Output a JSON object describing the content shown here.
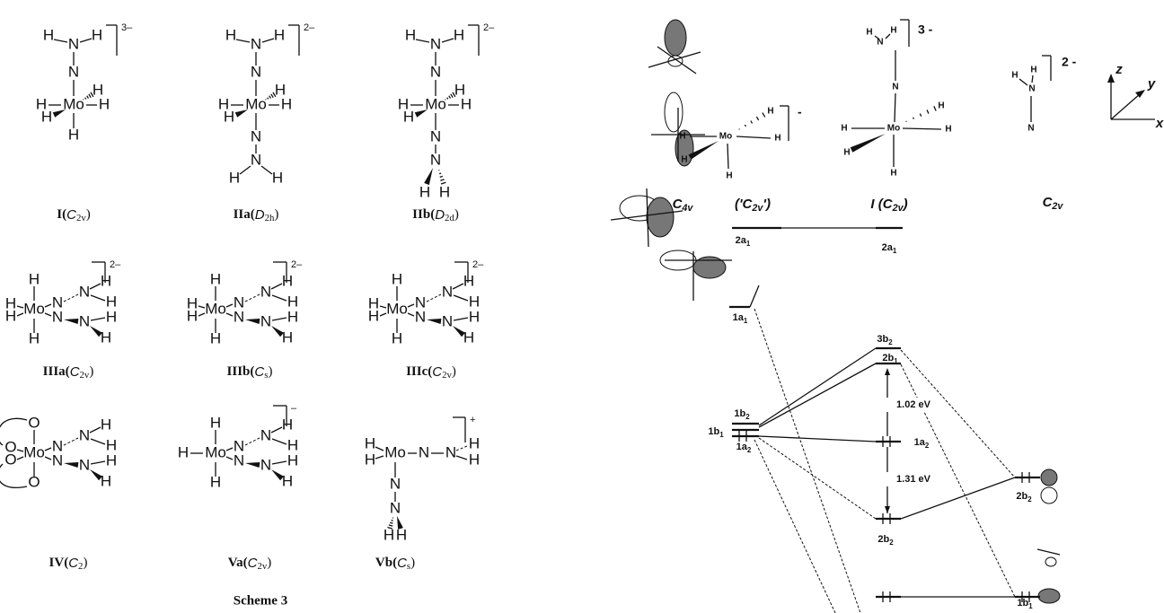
{
  "scheme": {
    "caption": "Scheme 3",
    "structures": [
      {
        "name": "I(",
        "group": "C",
        "group_sub": "2v",
        "close": ")",
        "charge": "3–",
        "atoms": [
          "H",
          "N",
          "H",
          "N",
          "H",
          "H",
          "Mo",
          "H",
          "H",
          "H"
        ]
      },
      {
        "name": "IIa(",
        "group": "D",
        "group_sub": "2h",
        "close": ")",
        "charge": "2–",
        "atoms": [
          "H",
          "N",
          "H",
          "N",
          "H",
          "H",
          "Mo",
          "H",
          "H",
          "N",
          "N",
          "H",
          "H"
        ]
      },
      {
        "name": "IIb(",
        "group": "D",
        "group_sub": "2d",
        "close": ")",
        "charge": "2–",
        "atoms": [
          "H",
          "N",
          "H",
          "N",
          "H",
          "H",
          "Mo",
          "H",
          "H",
          "N",
          "N",
          "H",
          "H"
        ]
      },
      {
        "name": "IIIa(",
        "group": "C",
        "group_sub": "2v",
        "close": ")",
        "charge": "2–",
        "atoms": [
          "H",
          "H",
          "H",
          "Mo",
          "N",
          "N",
          "N",
          "H",
          "H",
          "N",
          "H",
          "H",
          "H"
        ]
      },
      {
        "name": "IIIb(",
        "group": "C",
        "group_sub": "s",
        "close": ")",
        "charge": "2–",
        "atoms": [
          "H",
          "H",
          "H",
          "Mo",
          "N",
          "N",
          "N",
          "H",
          "H",
          "N",
          "H",
          "H",
          "H"
        ]
      },
      {
        "name": "IIIc(",
        "group": "C",
        "group_sub": "2v",
        "close": ")",
        "charge": "2–",
        "atoms": [
          "H",
          "H",
          "H",
          "Mo",
          "N",
          "N",
          "N",
          "H",
          "H",
          "N",
          "H",
          "H",
          "H"
        ]
      },
      {
        "name": "IV(",
        "group": "C",
        "group_sub": "2",
        "close": ")",
        "atoms": [
          "O",
          "O",
          "O",
          "Mo",
          "N",
          "N",
          "N",
          "H",
          "H",
          "N",
          "H",
          "H",
          "O"
        ]
      },
      {
        "name": "Va(",
        "group": "C",
        "group_sub": "2v",
        "close": ")",
        "charge": "–",
        "atoms": [
          "H",
          "H",
          "Mo",
          "N",
          "N",
          "N",
          "H",
          "H",
          "N",
          "H",
          "H",
          "H"
        ]
      },
      {
        "name": "Vb(",
        "group": "C",
        "group_sub": "s",
        "close": ")",
        "charge": "+",
        "atoms": [
          "H",
          "H",
          "Mo",
          "N",
          "N",
          "H",
          "H",
          "N",
          "N",
          "H",
          "H"
        ]
      }
    ]
  },
  "mo_diagram": {
    "headers": [
      {
        "main": "C",
        "sub": "4v"
      },
      {
        "main": "('C",
        "sub": "2v",
        "after": "')"
      },
      {
        "main": "I (C",
        "sub": "2v",
        "after": ")"
      },
      {
        "main": "C",
        "sub": "2v"
      }
    ],
    "fragments": [
      {
        "charge": "-",
        "atoms": [
          "H",
          "H",
          "Mo",
          "H",
          "H",
          "H"
        ]
      },
      {
        "charge": "3 -",
        "atoms": [
          "H",
          "N",
          "H",
          "N",
          "H",
          "H",
          "Mo",
          "H",
          "H",
          "H"
        ]
      },
      {
        "charge": "2 -",
        "atoms": [
          "H",
          "N",
          "H",
          "N"
        ]
      }
    ],
    "axes": [
      "z",
      "y",
      "x"
    ],
    "levels": [
      {
        "main": "2a",
        "sub": "1"
      },
      {
        "main": "2a",
        "sub": "1"
      },
      {
        "main": "1a",
        "sub": "1"
      },
      {
        "main": "3b",
        "sub": "2"
      },
      {
        "main": "2b",
        "sub": "1"
      },
      {
        "main": "1b",
        "sub": "2"
      },
      {
        "main": "1b",
        "sub": "1"
      },
      {
        "main": "1a",
        "sub": "2"
      },
      {
        "main": "1a",
        "sub": "2"
      },
      {
        "main": "2b",
        "sub": "2"
      },
      {
        "main": "2b",
        "sub": "2"
      },
      {
        "main": "1b",
        "sub": "1"
      }
    ],
    "gaps": [
      "1.02  eV",
      "1.31  eV"
    ]
  }
}
